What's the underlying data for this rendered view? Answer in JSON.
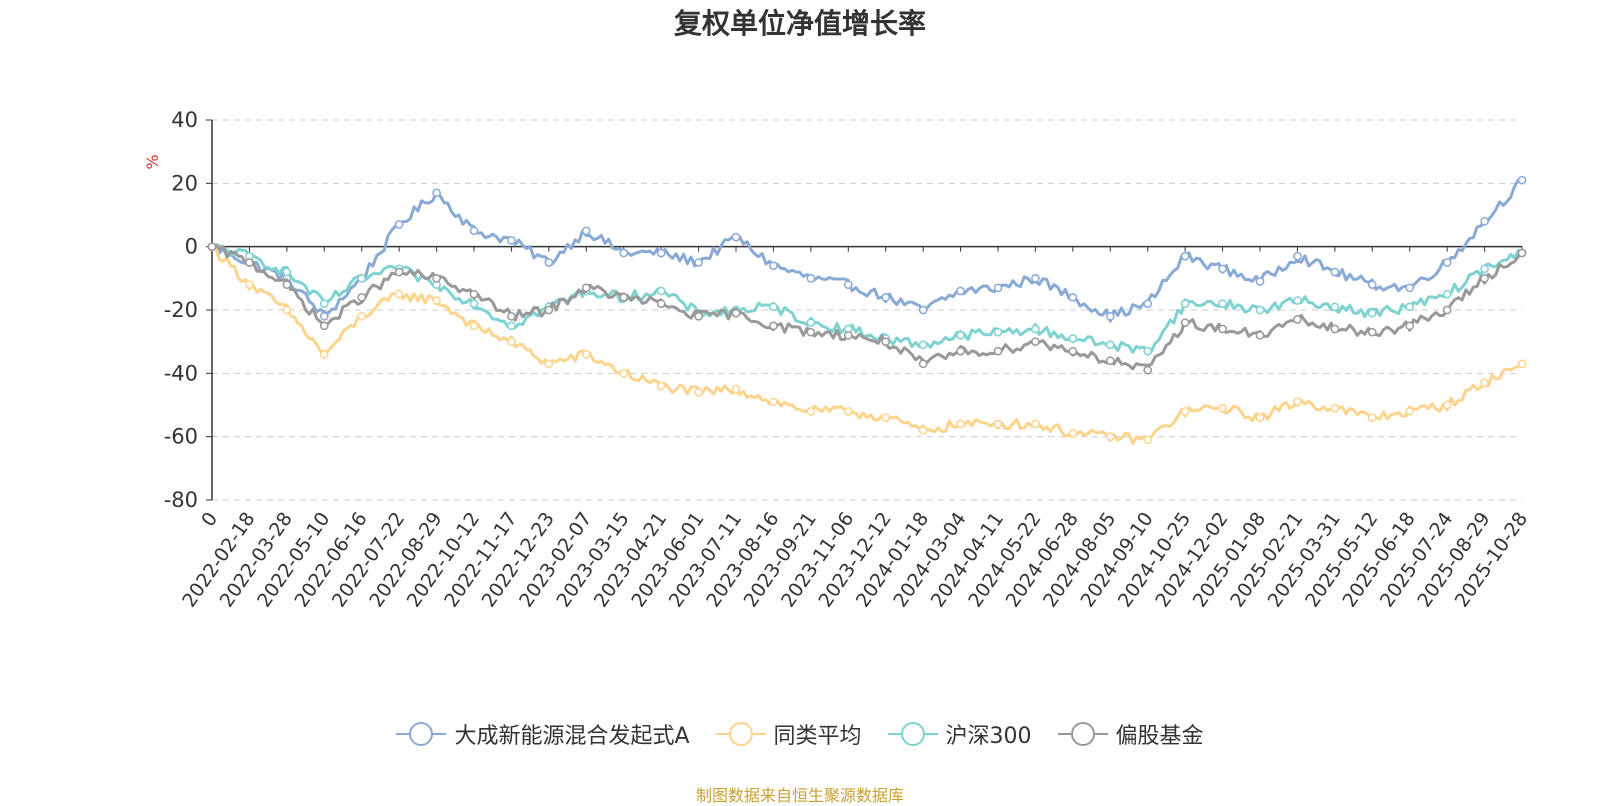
{
  "chart_data": {
    "type": "line",
    "title": "复权单位净值增长率",
    "ylabel": "%",
    "ylim": [
      -80,
      40
    ],
    "yticks": [
      "40",
      "20",
      "0",
      "-20",
      "-40",
      "-60",
      "-80"
    ],
    "yticks_values": [
      40,
      20,
      0,
      -20,
      -40,
      -60,
      -80
    ],
    "x_labels": [
      "0",
      "2022-02-18",
      "2022-03-28",
      "2022-05-10",
      "2022-06-16",
      "2022-07-22",
      "2022-08-29",
      "2022-10-12",
      "2022-11-17",
      "2022-12-23",
      "2023-02-07",
      "2023-03-15",
      "2023-04-21",
      "2023-06-01",
      "2023-07-11",
      "2023-08-16",
      "2023-09-21",
      "2023-11-06",
      "2023-12-12",
      "2024-01-18",
      "2024-03-04",
      "2024-04-11",
      "2024-05-22",
      "2024-06-28",
      "2024-08-05",
      "2024-09-10",
      "2024-10-25",
      "2024-12-02",
      "2025-01-08",
      "2025-02-21",
      "2025-03-31",
      "2025-05-12",
      "2025-06-18",
      "2025-07-24",
      "2025-08-29",
      "2025-10-28"
    ],
    "grid": true,
    "legend_position": "bottom",
    "series": [
      {
        "name": "大成新能源混合发起式A",
        "color": "#8aaad6",
        "values": [
          0,
          -5,
          -10,
          -22,
          -10,
          7,
          17,
          5,
          2,
          -5,
          5,
          -2,
          -2,
          -5,
          3,
          -6,
          -10,
          -12,
          -16,
          -20,
          -14,
          -13,
          -10,
          -16,
          -22,
          -18,
          -3,
          -7,
          -11,
          -3,
          -8,
          -12,
          -13,
          -5,
          8,
          21
        ]
      },
      {
        "name": "同类平均",
        "color": "#fcd48c",
        "values": [
          0,
          -12,
          -20,
          -34,
          -22,
          -15,
          -17,
          -25,
          -30,
          -37,
          -34,
          -40,
          -44,
          -46,
          -45,
          -49,
          -52,
          -52,
          -54,
          -58,
          -56,
          -56,
          -56,
          -59,
          -60,
          -61,
          -52,
          -51,
          -54,
          -49,
          -51,
          -54,
          -52,
          -50,
          -43,
          -37
        ]
      },
      {
        "name": "沪深300",
        "color": "#7ed2d2",
        "values": [
          0,
          -3,
          -8,
          -18,
          -10,
          -7,
          -12,
          -18,
          -25,
          -19,
          -14,
          -16,
          -14,
          -21,
          -20,
          -19,
          -24,
          -26,
          -29,
          -31,
          -28,
          -27,
          -26,
          -29,
          -31,
          -33,
          -18,
          -18,
          -20,
          -17,
          -19,
          -21,
          -19,
          -15,
          -7,
          -2
        ]
      },
      {
        "name": "偏股基金",
        "color": "#999999",
        "values": [
          0,
          -5,
          -12,
          -25,
          -16,
          -8,
          -10,
          -15,
          -22,
          -20,
          -13,
          -16,
          -18,
          -22,
          -21,
          -25,
          -27,
          -28,
          -30,
          -37,
          -33,
          -33,
          -30,
          -33,
          -36,
          -39,
          -24,
          -26,
          -28,
          -23,
          -26,
          -27,
          -25,
          -20,
          -10,
          -2
        ]
      }
    ]
  },
  "legend": {
    "items": [
      "大成新能源混合发起式A",
      "同类平均",
      "沪深300",
      "偏股基金"
    ]
  },
  "footer": {
    "source": "制图数据来自恒生聚源数据库"
  }
}
